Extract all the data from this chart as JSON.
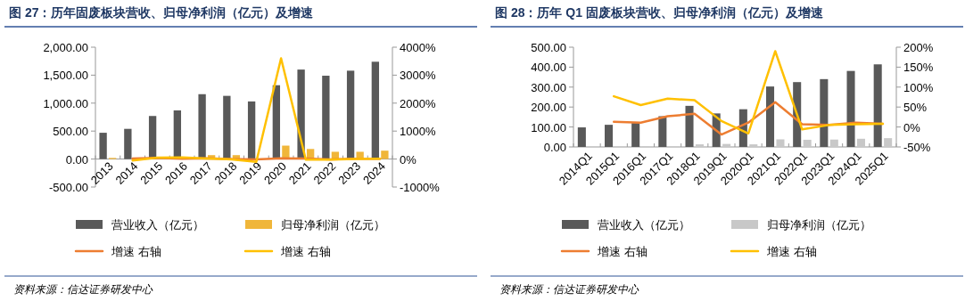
{
  "chart_data": [
    {
      "type": "bar",
      "title": "图 27：历年固废板块营收、归母净利润（亿元）及增速",
      "categories": [
        "2013",
        "2014",
        "2015",
        "2016",
        "2017",
        "2018",
        "2019",
        "2020",
        "2021",
        "2022",
        "2023",
        "2024"
      ],
      "series": [
        {
          "name": "营业收入（亿元）",
          "color": "#595959",
          "values": [
            470,
            540,
            770,
            870,
            1160,
            1130,
            1030,
            1320,
            1600,
            1490,
            1580,
            1740
          ]
        },
        {
          "name": "归母净利润（亿元）",
          "color": "#f0b63a",
          "values": [
            20,
            null,
            null,
            null,
            70,
            70,
            10,
            240,
            180,
            130,
            130,
            150
          ]
        },
        {
          "name": "增速 右轴",
          "type": "line",
          "axis": "y2",
          "color": "#ed7d31",
          "values": [
            null,
            20,
            40,
            10,
            30,
            0,
            -10,
            30,
            20,
            -10,
            10,
            10
          ]
        },
        {
          "name": "增速 右轴",
          "type": "line",
          "axis": "y2",
          "color": "#ffc000",
          "values": [
            null,
            -50,
            50,
            60,
            20,
            -10,
            -100,
            3600,
            -20,
            -20,
            0,
            10
          ]
        }
      ],
      "ylim": [
        -500,
        2000
      ],
      "yticks": [
        {
          "value": -500,
          "label": "-500.00"
        },
        {
          "value": 0,
          "label": "0.00"
        },
        {
          "value": 500,
          "label": "500.00"
        },
        {
          "value": 1000,
          "label": "1,000.00"
        },
        {
          "value": 1500,
          "label": "1,500.00"
        },
        {
          "value": 2000,
          "label": "2,000.00"
        }
      ],
      "y2lim": [
        -1000,
        4000
      ],
      "y2ticks": [
        {
          "value": -1000,
          "label": "-1000%"
        },
        {
          "value": 0,
          "label": "0%"
        },
        {
          "value": 1000,
          "label": "1000%"
        },
        {
          "value": 2000,
          "label": "2000%"
        },
        {
          "value": 3000,
          "label": "3000%"
        },
        {
          "value": 4000,
          "label": "4000%"
        }
      ],
      "legend": "bottom",
      "annotations": [
        "资料来源：信达证券研发中心"
      ]
    },
    {
      "type": "bar",
      "title": "图 28：历年 Q1 固废板块营收、归母净利润（亿元）及增速",
      "categories": [
        "2014Q1",
        "2015Q1",
        "2016Q1",
        "2017Q1",
        "2018Q1",
        "2019Q1",
        "2020Q1",
        "2021Q1",
        "2022Q1",
        "2023Q1",
        "2024Q1",
        "2025Q1"
      ],
      "series": [
        {
          "name": "营业收入（亿元）",
          "color": "#595959",
          "values": [
            98,
            111,
            120,
            154,
            206,
            168,
            189,
            303,
            325,
            340,
            381,
            414
          ]
        },
        {
          "name": "归母净利润（亿元）",
          "color": "#c8c8c8",
          "values": [
            0,
            1,
            2,
            null,
            13,
            15,
            13,
            38,
            36,
            37,
            41,
            44
          ]
        },
        {
          "name": "增速 右轴",
          "type": "line",
          "axis": "y2",
          "color": "#ed7d31",
          "values": [
            null,
            13,
            11,
            27,
            33,
            -19,
            11,
            62,
            7,
            5,
            11,
            8
          ]
        },
        {
          "name": "增速 右轴",
          "type": "line",
          "axis": "y2",
          "color": "#ffc000",
          "values": [
            null,
            77,
            55,
            71,
            67,
            15,
            -16,
            190,
            -6,
            5,
            7,
            8
          ]
        }
      ],
      "ylim": [
        0,
        500
      ],
      "yticks": [
        {
          "value": 0,
          "label": "0.00"
        },
        {
          "value": 100,
          "label": "100.00"
        },
        {
          "value": 200,
          "label": "200.00"
        },
        {
          "value": 300,
          "label": "300.00"
        },
        {
          "value": 400,
          "label": "400.00"
        },
        {
          "value": 500,
          "label": "500.00"
        }
      ],
      "y2lim": [
        -50,
        200
      ],
      "y2ticks": [
        {
          "value": -50,
          "label": "-50%"
        },
        {
          "value": 0,
          "label": "0%"
        },
        {
          "value": 50,
          "label": "50%"
        },
        {
          "value": 100,
          "label": "100%"
        },
        {
          "value": 150,
          "label": "150%"
        },
        {
          "value": 200,
          "label": "200%"
        }
      ],
      "legend": "bottom",
      "annotations": [
        "资料来源：信达证券研发中心"
      ]
    }
  ]
}
